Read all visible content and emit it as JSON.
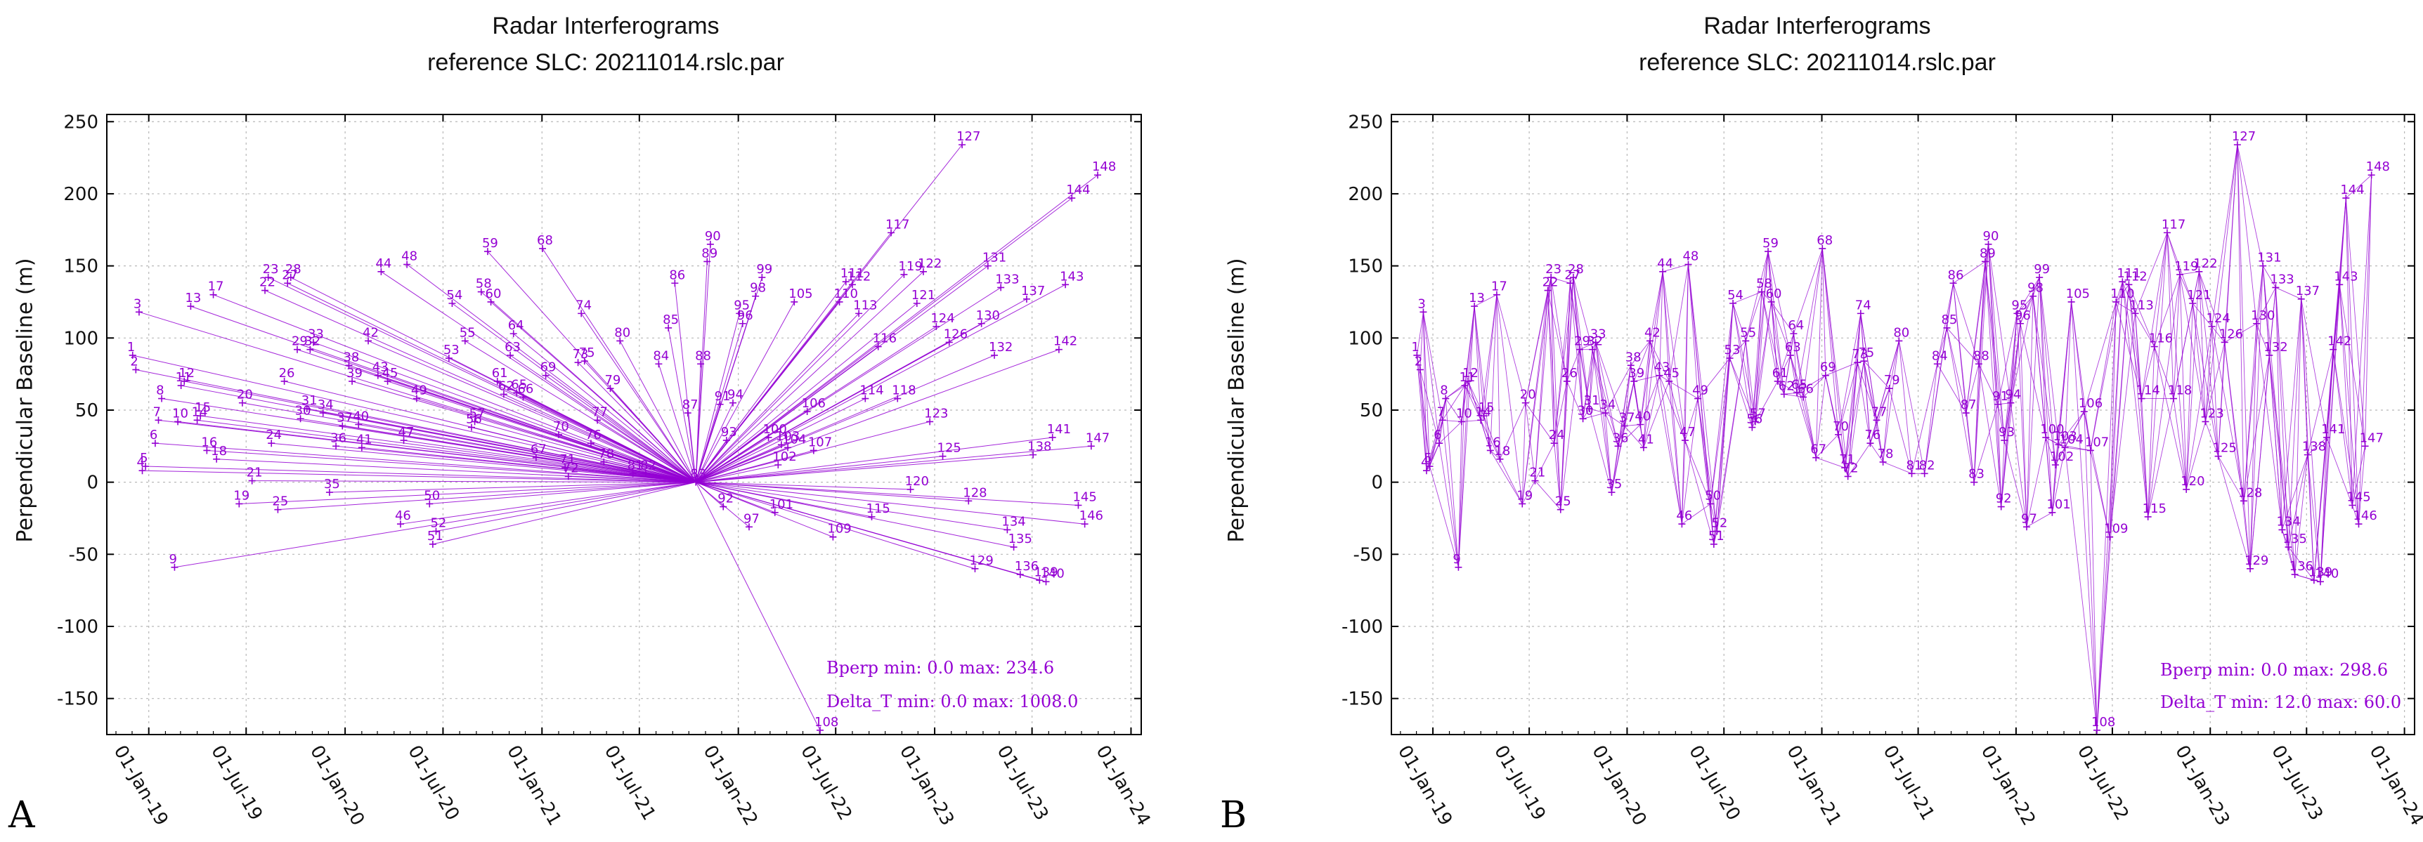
{
  "panels": [
    {
      "letter": "A",
      "title_line1": "Radar Interferograms",
      "title_line2": "reference SLC: 20211014.rslc.par",
      "ylabel": "Perpendicular Baseline (m)",
      "bperp_stats": "Bperp min: 0.0 max: 234.6",
      "deltat_stats": "Delta_T min: 0.0 max: 1008.0"
    },
    {
      "letter": "B",
      "title_line1": "Radar Interferograms",
      "title_line2": "reference SLC: 20211014.rslc.par",
      "ylabel": "Perpendicular Baseline (m)",
      "bperp_stats": "Bperp min: 0.0 max: 298.6",
      "deltat_stats": "Delta_T min: 12.0 max: 60.0"
    }
  ],
  "chart_data": [
    {
      "type": "scatter",
      "network": "single-reference",
      "title": "Radar Interferograms",
      "subtitle": "reference SLC: 20211014.rslc.par",
      "xlabel": "",
      "ylabel": "Perpendicular Baseline (m)",
      "x_unit": "date",
      "xlim": [
        "2018-10-15",
        "2024-01-20"
      ],
      "ylim": [
        -175,
        255
      ],
      "yticks": [
        250,
        200,
        150,
        100,
        50,
        0,
        -50,
        -100,
        -150
      ],
      "xtick_labels": [
        "01-Jan-19",
        "01-Jul-19",
        "01-Jan-20",
        "01-Jul-20",
        "01-Jan-21",
        "01-Jul-21",
        "01-Jan-22",
        "01-Jul-22",
        "01-Jan-23",
        "01-Jul-23",
        "01-Jan-24"
      ],
      "xtick_dates": [
        "2019-01-01",
        "2019-07-01",
        "2020-01-01",
        "2020-07-01",
        "2021-01-01",
        "2021-07-01",
        "2022-01-01",
        "2022-07-01",
        "2023-01-01",
        "2023-07-01",
        "2024-01-01"
      ],
      "grid": true,
      "color": "#9400d3",
      "reference_id": 83,
      "legend": "bottom-right"
    },
    {
      "type": "scatter",
      "network": "small-baseline",
      "title": "Radar Interferograms",
      "subtitle": "reference SLC: 20211014.rslc.par",
      "xlabel": "",
      "ylabel": "Perpendicular Baseline (m)",
      "x_unit": "date",
      "xlim": [
        "2018-10-15",
        "2024-01-20"
      ],
      "ylim": [
        -175,
        255
      ],
      "yticks": [
        250,
        200,
        150,
        100,
        50,
        0,
        -50,
        -100,
        -150
      ],
      "xtick_labels": [
        "01-Jan-19",
        "01-Jul-19",
        "01-Jan-20",
        "01-Jul-20",
        "01-Jan-21",
        "01-Jul-21",
        "01-Jan-22",
        "01-Jul-22",
        "01-Jan-23",
        "01-Jul-23",
        "01-Jan-24"
      ],
      "xtick_dates": [
        "2019-01-01",
        "2019-07-01",
        "2020-01-01",
        "2020-07-01",
        "2021-01-01",
        "2021-07-01",
        "2022-01-01",
        "2022-07-01",
        "2023-01-01",
        "2023-07-01",
        "2024-01-01"
      ],
      "grid": true,
      "color": "#9400d3",
      "max_pair_span_days": 60,
      "legend": "bottom-right"
    }
  ],
  "acquisitions": [
    {
      "id": 1,
      "date": "2018-12-02",
      "bperp": 88
    },
    {
      "id": 2,
      "date": "2018-12-08",
      "bperp": 78
    },
    {
      "id": 3,
      "date": "2018-12-14",
      "bperp": 118
    },
    {
      "id": 4,
      "date": "2018-12-20",
      "bperp": 8
    },
    {
      "id": 5,
      "date": "2018-12-26",
      "bperp": 11
    },
    {
      "id": 6,
      "date": "2019-01-13",
      "bperp": 27
    },
    {
      "id": 7,
      "date": "2019-01-19",
      "bperp": 43
    },
    {
      "id": 8,
      "date": "2019-01-25",
      "bperp": 58
    },
    {
      "id": 9,
      "date": "2019-02-18",
      "bperp": -59
    },
    {
      "id": 10,
      "date": "2019-02-24",
      "bperp": 42
    },
    {
      "id": 11,
      "date": "2019-03-02",
      "bperp": 67
    },
    {
      "id": 12,
      "date": "2019-03-08",
      "bperp": 70
    },
    {
      "id": 13,
      "date": "2019-03-20",
      "bperp": 122
    },
    {
      "id": 14,
      "date": "2019-04-01",
      "bperp": 43
    },
    {
      "id": 15,
      "date": "2019-04-07",
      "bperp": 46
    },
    {
      "id": 16,
      "date": "2019-04-19",
      "bperp": 22
    },
    {
      "id": 17,
      "date": "2019-05-01",
      "bperp": 130
    },
    {
      "id": 18,
      "date": "2019-05-07",
      "bperp": 16
    },
    {
      "id": 19,
      "date": "2019-06-18",
      "bperp": -15
    },
    {
      "id": 20,
      "date": "2019-06-24",
      "bperp": 55
    },
    {
      "id": 21,
      "date": "2019-07-12",
      "bperp": 1
    },
    {
      "id": 22,
      "date": "2019-08-05",
      "bperp": 133
    },
    {
      "id": 23,
      "date": "2019-08-11",
      "bperp": 142
    },
    {
      "id": 24,
      "date": "2019-08-17",
      "bperp": 27
    },
    {
      "id": 25,
      "date": "2019-08-29",
      "bperp": -19
    },
    {
      "id": 26,
      "date": "2019-09-10",
      "bperp": 70
    },
    {
      "id": 27,
      "date": "2019-09-16",
      "bperp": 138
    },
    {
      "id": 28,
      "date": "2019-09-22",
      "bperp": 142
    },
    {
      "id": 29,
      "date": "2019-10-04",
      "bperp": 92
    },
    {
      "id": 30,
      "date": "2019-10-10",
      "bperp": 44
    },
    {
      "id": 31,
      "date": "2019-10-22",
      "bperp": 51
    },
    {
      "id": 32,
      "date": "2019-10-28",
      "bperp": 92
    },
    {
      "id": 33,
      "date": "2019-11-03",
      "bperp": 97
    },
    {
      "id": 34,
      "date": "2019-11-21",
      "bperp": 48
    },
    {
      "id": 35,
      "date": "2019-12-03",
      "bperp": -7
    },
    {
      "id": 36,
      "date": "2019-12-15",
      "bperp": 25
    },
    {
      "id": 37,
      "date": "2019-12-27",
      "bperp": 39
    },
    {
      "id": 38,
      "date": "2020-01-08",
      "bperp": 81
    },
    {
      "id": 39,
      "date": "2020-01-14",
      "bperp": 70
    },
    {
      "id": 40,
      "date": "2020-01-26",
      "bperp": 40
    },
    {
      "id": 41,
      "date": "2020-02-01",
      "bperp": 24
    },
    {
      "id": 42,
      "date": "2020-02-13",
      "bperp": 98
    },
    {
      "id": 43,
      "date": "2020-03-02",
      "bperp": 74
    },
    {
      "id": 44,
      "date": "2020-03-08",
      "bperp": 146
    },
    {
      "id": 45,
      "date": "2020-03-20",
      "bperp": 70
    },
    {
      "id": 46,
      "date": "2020-04-13",
      "bperp": -29
    },
    {
      "id": 47,
      "date": "2020-04-19",
      "bperp": 29
    },
    {
      "id": 48,
      "date": "2020-04-25",
      "bperp": 151
    },
    {
      "id": 49,
      "date": "2020-05-13",
      "bperp": 58
    },
    {
      "id": 50,
      "date": "2020-06-06",
      "bperp": -15
    },
    {
      "id": 51,
      "date": "2020-06-12",
      "bperp": -43
    },
    {
      "id": 52,
      "date": "2020-06-18",
      "bperp": -34
    },
    {
      "id": 53,
      "date": "2020-07-12",
      "bperp": 86
    },
    {
      "id": 54,
      "date": "2020-07-18",
      "bperp": 124
    },
    {
      "id": 55,
      "date": "2020-08-11",
      "bperp": 98
    },
    {
      "id": 56,
      "date": "2020-08-23",
      "bperp": 38
    },
    {
      "id": 57,
      "date": "2020-08-29",
      "bperp": 42
    },
    {
      "id": 58,
      "date": "2020-09-10",
      "bperp": 132
    },
    {
      "id": 59,
      "date": "2020-09-22",
      "bperp": 160
    },
    {
      "id": 60,
      "date": "2020-09-28",
      "bperp": 125
    },
    {
      "id": 61,
      "date": "2020-10-10",
      "bperp": 70
    },
    {
      "id": 62,
      "date": "2020-10-22",
      "bperp": 61
    },
    {
      "id": 63,
      "date": "2020-11-03",
      "bperp": 88
    },
    {
      "id": 64,
      "date": "2020-11-09",
      "bperp": 103
    },
    {
      "id": 65,
      "date": "2020-11-15",
      "bperp": 62
    },
    {
      "id": 66,
      "date": "2020-11-27",
      "bperp": 59
    },
    {
      "id": 67,
      "date": "2020-12-21",
      "bperp": 17
    },
    {
      "id": 68,
      "date": "2021-01-02",
      "bperp": 162
    },
    {
      "id": 69,
      "date": "2021-01-08",
      "bperp": 74
    },
    {
      "id": 70,
      "date": "2021-02-01",
      "bperp": 33
    },
    {
      "id": 71,
      "date": "2021-02-13",
      "bperp": 10
    },
    {
      "id": 72,
      "date": "2021-02-19",
      "bperp": 4
    },
    {
      "id": 73,
      "date": "2021-03-09",
      "bperp": 83
    },
    {
      "id": 74,
      "date": "2021-03-15",
      "bperp": 117
    },
    {
      "id": 75,
      "date": "2021-03-21",
      "bperp": 84
    },
    {
      "id": 76,
      "date": "2021-04-02",
      "bperp": 27
    },
    {
      "id": 77,
      "date": "2021-04-14",
      "bperp": 43
    },
    {
      "id": 78,
      "date": "2021-04-26",
      "bperp": 14
    },
    {
      "id": 79,
      "date": "2021-05-08",
      "bperp": 65
    },
    {
      "id": 80,
      "date": "2021-05-26",
      "bperp": 98
    },
    {
      "id": 81,
      "date": "2021-06-19",
      "bperp": 6
    },
    {
      "id": 82,
      "date": "2021-07-13",
      "bperp": 6
    },
    {
      "id": 83,
      "date": "2021-10-14",
      "bperp": 0
    },
    {
      "id": 84,
      "date": "2021-08-06",
      "bperp": 82
    },
    {
      "id": 85,
      "date": "2021-08-24",
      "bperp": 107
    },
    {
      "id": 86,
      "date": "2021-09-05",
      "bperp": 138
    },
    {
      "id": 87,
      "date": "2021-09-29",
      "bperp": 48
    },
    {
      "id": 88,
      "date": "2021-10-23",
      "bperp": 82
    },
    {
      "id": 89,
      "date": "2021-11-04",
      "bperp": 153
    },
    {
      "id": 90,
      "date": "2021-11-10",
      "bperp": 165
    },
    {
      "id": 91,
      "date": "2021-11-28",
      "bperp": 54
    },
    {
      "id": 92,
      "date": "2021-12-04",
      "bperp": -17
    },
    {
      "id": 93,
      "date": "2021-12-10",
      "bperp": 29
    },
    {
      "id": 94,
      "date": "2021-12-22",
      "bperp": 55
    },
    {
      "id": 95,
      "date": "2022-01-03",
      "bperp": 117
    },
    {
      "id": 96,
      "date": "2022-01-09",
      "bperp": 110
    },
    {
      "id": 97,
      "date": "2022-01-21",
      "bperp": -31
    },
    {
      "id": 98,
      "date": "2022-02-02",
      "bperp": 129
    },
    {
      "id": 99,
      "date": "2022-02-14",
      "bperp": 142
    },
    {
      "id": 100,
      "date": "2022-02-26",
      "bperp": 31
    },
    {
      "id": 101,
      "date": "2022-03-10",
      "bperp": -21
    },
    {
      "id": 102,
      "date": "2022-03-16",
      "bperp": 12
    },
    {
      "id": 103,
      "date": "2022-03-22",
      "bperp": 26
    },
    {
      "id": 104,
      "date": "2022-04-03",
      "bperp": 24
    },
    {
      "id": 105,
      "date": "2022-04-15",
      "bperp": 125
    },
    {
      "id": 106,
      "date": "2022-05-09",
      "bperp": 49
    },
    {
      "id": 107,
      "date": "2022-05-21",
      "bperp": 22
    },
    {
      "id": 108,
      "date": "2022-06-02",
      "bperp": -172
    },
    {
      "id": 109,
      "date": "2022-06-26",
      "bperp": -38
    },
    {
      "id": 110,
      "date": "2022-07-08",
      "bperp": 125
    },
    {
      "id": 111,
      "date": "2022-07-20",
      "bperp": 139
    },
    {
      "id": 112,
      "date": "2022-08-01",
      "bperp": 137
    },
    {
      "id": 113,
      "date": "2022-08-13",
      "bperp": 117
    },
    {
      "id": 114,
      "date": "2022-08-25",
      "bperp": 58
    },
    {
      "id": 115,
      "date": "2022-09-06",
      "bperp": -24
    },
    {
      "id": 116,
      "date": "2022-09-18",
      "bperp": 94
    },
    {
      "id": 117,
      "date": "2022-10-12",
      "bperp": 173
    },
    {
      "id": 118,
      "date": "2022-10-24",
      "bperp": 58
    },
    {
      "id": 119,
      "date": "2022-11-05",
      "bperp": 144
    },
    {
      "id": 120,
      "date": "2022-11-17",
      "bperp": -5
    },
    {
      "id": 121,
      "date": "2022-11-29",
      "bperp": 124
    },
    {
      "id": 122,
      "date": "2022-12-11",
      "bperp": 146
    },
    {
      "id": 123,
      "date": "2022-12-23",
      "bperp": 42
    },
    {
      "id": 124,
      "date": "2023-01-04",
      "bperp": 108
    },
    {
      "id": 125,
      "date": "2023-01-16",
      "bperp": 18
    },
    {
      "id": 126,
      "date": "2023-01-28",
      "bperp": 97
    },
    {
      "id": 127,
      "date": "2023-02-21",
      "bperp": 234
    },
    {
      "id": 128,
      "date": "2023-03-05",
      "bperp": -13
    },
    {
      "id": 129,
      "date": "2023-03-17",
      "bperp": -60
    },
    {
      "id": 130,
      "date": "2023-03-29",
      "bperp": 110
    },
    {
      "id": 131,
      "date": "2023-04-10",
      "bperp": 150
    },
    {
      "id": 132,
      "date": "2023-04-22",
      "bperp": 88
    },
    {
      "id": 133,
      "date": "2023-05-04",
      "bperp": 135
    },
    {
      "id": 134,
      "date": "2023-05-16",
      "bperp": -33
    },
    {
      "id": 135,
      "date": "2023-05-28",
      "bperp": -45
    },
    {
      "id": 136,
      "date": "2023-06-09",
      "bperp": -64
    },
    {
      "id": 137,
      "date": "2023-06-21",
      "bperp": 127
    },
    {
      "id": 138,
      "date": "2023-07-03",
      "bperp": 19
    },
    {
      "id": 139,
      "date": "2023-07-15",
      "bperp": -68
    },
    {
      "id": 140,
      "date": "2023-07-27",
      "bperp": -69
    },
    {
      "id": 141,
      "date": "2023-08-08",
      "bperp": 31
    },
    {
      "id": 142,
      "date": "2023-08-20",
      "bperp": 92
    },
    {
      "id": 143,
      "date": "2023-09-01",
      "bperp": 137
    },
    {
      "id": 144,
      "date": "2023-09-13",
      "bperp": 197
    },
    {
      "id": 145,
      "date": "2023-09-25",
      "bperp": -16
    },
    {
      "id": 146,
      "date": "2023-10-07",
      "bperp": -29
    },
    {
      "id": 147,
      "date": "2023-10-19",
      "bperp": 25
    },
    {
      "id": 148,
      "date": "2023-10-31",
      "bperp": 213
    }
  ]
}
